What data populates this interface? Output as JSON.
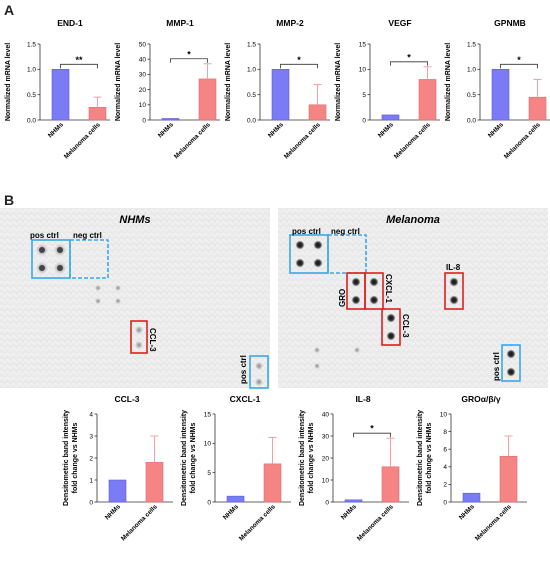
{
  "panels": {
    "a_label": "A",
    "b_label": "B"
  },
  "colors": {
    "nhm": "#7b7bf5",
    "nhm_edge": "#5a5ae0",
    "mel": "#f58585",
    "mel_edge": "#e06a6a",
    "err": "#f2a0a0",
    "sig": "#333333",
    "box_red": "#e02020",
    "box_blue": "#3aa8e8"
  },
  "chart_data": [
    {
      "id": "c1",
      "type": "bar",
      "title": "END-1",
      "ylabel": "Normalized mRNA level",
      "categories": [
        "NHMs",
        "Melanoma cells"
      ],
      "values": [
        1.0,
        0.25
      ],
      "errors": [
        0,
        0.2
      ],
      "ylim": [
        0,
        1.5
      ],
      "yticks": [
        0.0,
        0.5,
        1.0,
        1.5
      ],
      "ytick_labels": [
        "0.0",
        "0.5",
        "1.0",
        "1.5"
      ],
      "significance": "**"
    },
    {
      "id": "c2",
      "type": "bar",
      "title": "MMP-1",
      "ylabel": "Normalized mRNA level",
      "categories": [
        "NHMs",
        "Melanoma cells"
      ],
      "values": [
        1.0,
        27
      ],
      "errors": [
        0,
        10
      ],
      "ylim": [
        0,
        50
      ],
      "yticks": [
        0,
        10,
        20,
        30,
        40,
        50
      ],
      "ytick_labels": [
        "0",
        "10",
        "20",
        "30",
        "40",
        "50"
      ],
      "significance": "*"
    },
    {
      "id": "c3",
      "type": "bar",
      "title": "MMP-2",
      "ylabel": "Normalized mRNA level",
      "categories": [
        "NHMs",
        "Melanoma cells"
      ],
      "values": [
        1.0,
        0.3
      ],
      "errors": [
        0,
        0.4
      ],
      "ylim": [
        0,
        1.5
      ],
      "yticks": [
        0.0,
        0.5,
        1.0,
        1.5
      ],
      "ytick_labels": [
        "0.0",
        "0.5",
        "1.0",
        "1.5"
      ],
      "significance": "*"
    },
    {
      "id": "c4",
      "type": "bar",
      "title": "VEGF",
      "ylabel": "Normalized mRNA level",
      "categories": [
        "NHMs",
        "Melanoma cells"
      ],
      "values": [
        1.0,
        8.0
      ],
      "errors": [
        0,
        2.5
      ],
      "ylim": [
        0,
        15
      ],
      "yticks": [
        0,
        5,
        10,
        15
      ],
      "ytick_labels": [
        "0",
        "5",
        "10",
        "15"
      ],
      "significance": "*"
    },
    {
      "id": "c5",
      "type": "bar",
      "title": "GPNMB",
      "ylabel": "Normalized mRNA level",
      "categories": [
        "NHMs",
        "Melanoma cells"
      ],
      "values": [
        1.0,
        0.45
      ],
      "errors": [
        0,
        0.35
      ],
      "ylim": [
        0,
        1.5
      ],
      "yticks": [
        0.0,
        0.5,
        1.0,
        1.5
      ],
      "ytick_labels": [
        "0.0",
        "0.5",
        "1.0",
        "1.5"
      ],
      "significance": "*"
    },
    {
      "id": "d1",
      "type": "bar",
      "title": "CCL-3",
      "ylabel": "Densitometric band intensity fold change vs NHMs",
      "ylabel_lines": [
        "Densitometric band intensity",
        "fold change vs NHMs"
      ],
      "categories": [
        "NHMs",
        "Melanoma cells"
      ],
      "values": [
        1.0,
        1.8
      ],
      "errors": [
        0,
        1.2
      ],
      "ylim": [
        0,
        4
      ],
      "yticks": [
        0,
        1,
        2,
        3,
        4
      ],
      "ytick_labels": [
        "0",
        "1",
        "2",
        "3",
        "4"
      ],
      "significance": ""
    },
    {
      "id": "d2",
      "type": "bar",
      "title": "CXCL-1",
      "ylabel": "Densitometric band intensity fold change vs NHMs",
      "ylabel_lines": [
        "Densitometric band intensity",
        "fold change vs NHMs"
      ],
      "categories": [
        "NHMs",
        "Melanoma cells"
      ],
      "values": [
        1.0,
        6.5
      ],
      "errors": [
        0,
        4.5
      ],
      "ylim": [
        0,
        15
      ],
      "yticks": [
        0,
        5,
        10,
        15
      ],
      "ytick_labels": [
        "0",
        "5",
        "10",
        "15"
      ],
      "significance": ""
    },
    {
      "id": "d3",
      "type": "bar",
      "title": "IL-8",
      "ylabel": "Densitometric band intensity fold change vs NHMs",
      "ylabel_lines": [
        "Densitometric band intensity",
        "fold change vs NHMs"
      ],
      "categories": [
        "NHMs",
        "Melanoma cells"
      ],
      "values": [
        1.0,
        16
      ],
      "errors": [
        0,
        13
      ],
      "ylim": [
        0,
        40
      ],
      "yticks": [
        0,
        10,
        20,
        30,
        40
      ],
      "ytick_labels": [
        "0",
        "10",
        "20",
        "30",
        "40"
      ],
      "significance": "*"
    },
    {
      "id": "d4",
      "type": "bar",
      "title": "GROα/β/γ",
      "ylabel": "Densitometric band intensity fold change vs NHMs",
      "ylabel_lines": [
        "Densitometric band intensity",
        "fold change vs NHMs"
      ],
      "categories": [
        "NHMs",
        "Melanoma cells"
      ],
      "values": [
        1.0,
        5.2
      ],
      "errors": [
        0,
        2.3
      ],
      "ylim": [
        0,
        10
      ],
      "yticks": [
        0,
        2,
        4,
        6,
        8,
        10
      ],
      "ytick_labels": [
        "0",
        "2",
        "4",
        "6",
        "8",
        "10"
      ],
      "significance": ""
    }
  ],
  "blots": {
    "nhm": {
      "title": "NHMs",
      "pos_ctrl": "pos ctrl",
      "neg_ctrl": "neg ctrl",
      "ccl3": "CCL-3",
      "pos_ctrl_2": "pos ctrl"
    },
    "mel": {
      "title": "Melanoma",
      "pos_ctrl": "pos ctrl",
      "neg_ctrl": "neg ctrl",
      "gro": "GRO",
      "cxcl1": "CXCL-1",
      "il8": "IL-8",
      "ccl3": "CCL-3",
      "pos_ctrl_2": "pos ctrl"
    }
  }
}
